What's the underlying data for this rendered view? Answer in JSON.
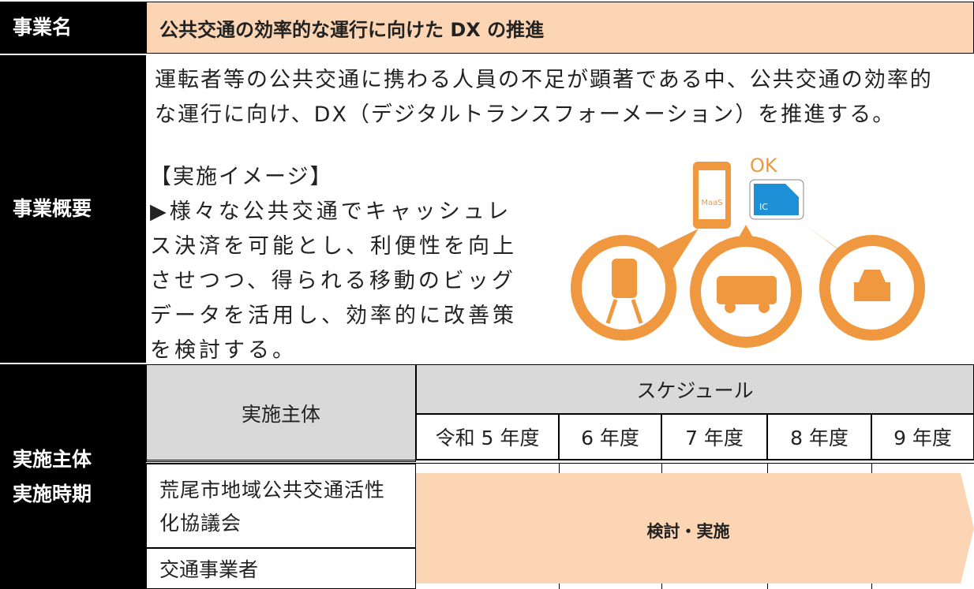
{
  "project_name": {
    "label": "事業名",
    "value": "公共交通の効率的な運行に向けた DX の推進"
  },
  "overview": {
    "label": "事業概要",
    "text_lines": [
      "運転者等の公共交通に携わる人員の不足が顕著である中、公共交通の効率的",
      "な運行に向け、DX（デジタルトランスフォーメーション）を推進する。"
    ],
    "image_heading": "【実施イメージ】",
    "image_lines": [
      "▶様々な公共交通でキャッシュレ",
      "ス決済を可能とし、利便性を向上",
      "させつつ、得られる移動のビッグ",
      "データを活用し、効率的に改善策",
      "を検討する。"
    ],
    "illustration": {
      "ok": "OK",
      "app": "MaaS",
      "card": "IC"
    }
  },
  "schedule": {
    "label_lines": [
      "実施主体",
      "実施時期"
    ],
    "entity_header": "実施主体",
    "schedule_header": "スケジュール",
    "years": [
      "令和 5 年度",
      "6 年度",
      "7 年度",
      "8 年度",
      "9 年度"
    ],
    "entities": [
      "荒尾市地域公共交通活性化協議会",
      "交通事業者"
    ],
    "bar_label": "検討・実施"
  }
}
